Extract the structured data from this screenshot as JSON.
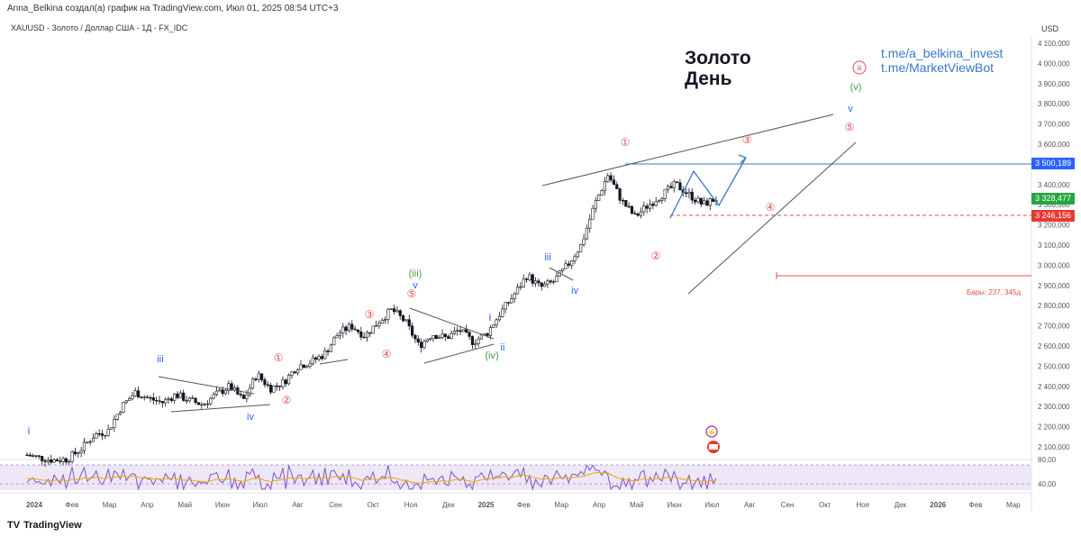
{
  "header": {
    "author_line": "Anna_Belkina создал(а) график на TradingView.com, Июл 01, 2025 08:54 UTC+3",
    "symbol_line": "XAUUSD - Золото / Доллар США - 1Д - FX_IDC",
    "currency": "USD"
  },
  "annotations": {
    "title_line1": "Золото",
    "title_line2": "День",
    "link1": "t.me/a_belkina_invest",
    "link2": "t.me/MarketViewBot",
    "bars_note": "Бары: 237, 345д"
  },
  "price_tags": {
    "resistance": "3 500,189",
    "last": "3 328,477",
    "support": "3 246,156"
  },
  "brand": {
    "name": "TradingView",
    "logo": "TV"
  },
  "colors": {
    "candle": "#131722",
    "wave_red": "#e05050",
    "wave_blue": "#2962ff",
    "wave_green": "#43a047",
    "rsi": "#7e57c2",
    "rsi_ma": "#f7a600"
  },
  "chart_data": {
    "type": "candlestick",
    "ylim": [
      2050,
      4150
    ],
    "yticks": [
      "2 100,000",
      "2 200,000",
      "2 300,000",
      "2 400,000",
      "2 500,000",
      "2 600,000",
      "2 700,000",
      "2 800,000",
      "2 900,000",
      "3 000,000",
      "3 100,000",
      "3 200,000",
      "3 300,000",
      "3 400,000",
      "3 500,000",
      "3 600,000",
      "3 700,000",
      "3 800,000",
      "3 900,000",
      "4 000,000",
      "4 100,000"
    ],
    "ytick_values": [
      2100,
      2200,
      2300,
      2400,
      2500,
      2600,
      2700,
      2800,
      2900,
      3000,
      3100,
      3200,
      3300,
      3400,
      3500,
      3600,
      3700,
      3800,
      3900,
      4000,
      4100
    ],
    "xticks": [
      {
        "label": "2024",
        "bold": true
      },
      {
        "label": "Фев"
      },
      {
        "label": "Мар"
      },
      {
        "label": "Апр"
      },
      {
        "label": "Май"
      },
      {
        "label": "Июн"
      },
      {
        "label": "Июл"
      },
      {
        "label": "Авг"
      },
      {
        "label": "Сен"
      },
      {
        "label": "Окт"
      },
      {
        "label": "Ноя"
      },
      {
        "label": "Дек"
      },
      {
        "label": "2025",
        "bold": true
      },
      {
        "label": "Фев"
      },
      {
        "label": "Мар"
      },
      {
        "label": "Апр"
      },
      {
        "label": "Май"
      },
      {
        "label": "Июн"
      },
      {
        "label": "Июл"
      },
      {
        "label": "Авг"
      },
      {
        "label": "Сен"
      },
      {
        "label": "Окт"
      },
      {
        "label": "Ноя"
      },
      {
        "label": "Дек"
      },
      {
        "label": "2026",
        "bold": true
      },
      {
        "label": "Фев"
      },
      {
        "label": "Мар"
      }
    ],
    "price_path": [
      [
        0,
        2060
      ],
      [
        1,
        2045
      ],
      [
        2,
        2035
      ],
      [
        3,
        2040
      ],
      [
        4,
        2090
      ],
      [
        5,
        2160
      ],
      [
        6,
        2180
      ],
      [
        7,
        2300
      ],
      [
        8,
        2370
      ],
      [
        9,
        2340
      ],
      [
        10,
        2320
      ],
      [
        11,
        2360
      ],
      [
        12,
        2330
      ],
      [
        13,
        2310
      ],
      [
        14,
        2360
      ],
      [
        15,
        2400
      ],
      [
        16,
        2330
      ],
      [
        17,
        2460
      ],
      [
        18,
        2390
      ],
      [
        19,
        2420
      ],
      [
        20,
        2500
      ],
      [
        21,
        2520
      ],
      [
        22,
        2560
      ],
      [
        23,
        2660
      ],
      [
        24,
        2700
      ],
      [
        25,
        2650
      ],
      [
        26,
        2720
      ],
      [
        27,
        2780
      ],
      [
        28,
        2720
      ],
      [
        29,
        2600
      ],
      [
        30,
        2660
      ],
      [
        31,
        2640
      ],
      [
        32,
        2680
      ],
      [
        33,
        2620
      ],
      [
        34,
        2660
      ],
      [
        35,
        2760
      ],
      [
        36,
        2850
      ],
      [
        37,
        2950
      ],
      [
        38,
        2890
      ],
      [
        39,
        2920
      ],
      [
        40,
        3000
      ],
      [
        41,
        3100
      ],
      [
        42,
        3300
      ],
      [
        43,
        3450
      ],
      [
        44,
        3320
      ],
      [
        45,
        3240
      ],
      [
        46,
        3300
      ],
      [
        47,
        3350
      ],
      [
        48,
        3400
      ],
      [
        49,
        3350
      ],
      [
        50,
        3300
      ],
      [
        51,
        3330
      ]
    ],
    "rsi_ylim": [
      30,
      90
    ],
    "rsi_levels": [
      40,
      80
    ],
    "rsi_labels": [
      "80,00",
      "40,00"
    ]
  }
}
